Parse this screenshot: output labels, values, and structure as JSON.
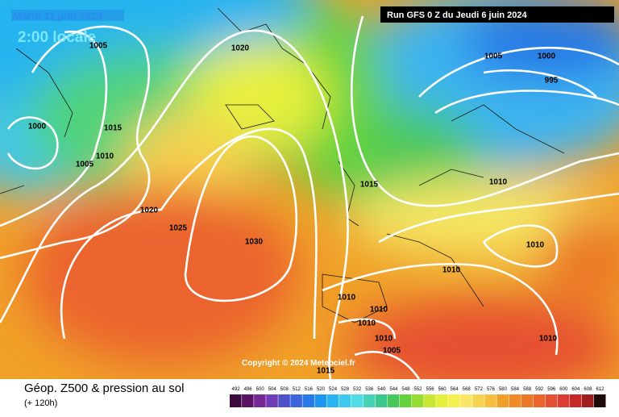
{
  "header": {
    "date": "Mardi 11 juin 2024",
    "time": "2:00 locale",
    "run": "Run GFS 0 Z du Jeudi 6 juin 2024"
  },
  "isobar_labels": [
    "1005",
    "1020",
    "1000",
    "1015",
    "1010",
    "1005",
    "1020",
    "1025",
    "1030",
    "1015",
    "1005",
    "1000",
    "995",
    "1010",
    "1010",
    "1010",
    "1010",
    "1010",
    "1010",
    "1010",
    "1005",
    "1015",
    "1010"
  ],
  "copyright": "Copyright © 2024 Meteociel.fr",
  "footer": {
    "title": "Géop. Z500 & pression au sol",
    "lead": "(+ 120h)"
  },
  "legend": {
    "labels": [
      492,
      496,
      500,
      504,
      508,
      512,
      516,
      520,
      524,
      528,
      532,
      536,
      540,
      544,
      548,
      552,
      556,
      560,
      564,
      568,
      572,
      576,
      580,
      584,
      588,
      592,
      596,
      600,
      604,
      608,
      612
    ],
    "colors": [
      "#3c0a3c",
      "#5a1464",
      "#782896",
      "#6e3cb4",
      "#5050c8",
      "#3c64dc",
      "#2878e6",
      "#1e96f0",
      "#28b4f0",
      "#3cc8f0",
      "#50dce6",
      "#46d2b4",
      "#3cc88c",
      "#46c85a",
      "#64d23c",
      "#96dc32",
      "#c8e632",
      "#e6f03c",
      "#f5f050",
      "#fae664",
      "#f5d250",
      "#f5be3c",
      "#f0a028",
      "#f08c28",
      "#eb7828",
      "#eb642d",
      "#e65032",
      "#dc3c32",
      "#c82828",
      "#a01e1e",
      "#1e0a0a"
    ]
  }
}
